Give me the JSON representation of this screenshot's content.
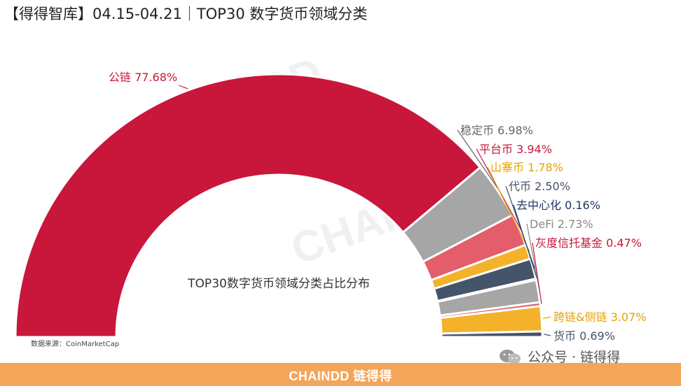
{
  "header": {
    "title": "【得得智库】04.15-04.21｜TOP30 数字货币领域分类"
  },
  "source": "数据来源：CoinMarketCap",
  "footer": {
    "brand": "CHAINDD 链得得"
  },
  "wechat": {
    "label": "公众号 · 链得得"
  },
  "watermarks": [
    "CHAINDD",
    "链得得"
  ],
  "chart_data": {
    "type": "pie",
    "subtype": "half-doughnut",
    "title": "TOP30数字货币领域分类占比分布",
    "categories": [
      "公链",
      "稳定币",
      "平台币",
      "山寨币",
      "代币",
      "去中心化",
      "DeFi",
      "灰度信托基金",
      "跨链&侧链",
      "货币"
    ],
    "values": [
      77.68,
      6.98,
      3.94,
      1.78,
      2.5,
      0.16,
      2.73,
      0.47,
      3.07,
      0.69
    ],
    "labels": [
      "公链 77.68%",
      "稳定币 6.98%",
      "平台币 3.94%",
      "山寨币 1.78%",
      "代币 2.50%",
      "去中心化 0.16%",
      "DeFi 2.73%",
      "灰度信托基金 0.47%",
      "跨链&侧链 3.07%",
      "货币 0.69%"
    ],
    "colors": [
      "#c8173a",
      "#a6a6a6",
      "#e35d6a",
      "#f3b229",
      "#44546a",
      "#1f3864",
      "#a6a6a6",
      "#e35d6a",
      "#f3b229",
      "#44546a"
    ],
    "label_colors": [
      "#c8173a",
      "#666666",
      "#c8173a",
      "#e8a000",
      "#44546a",
      "#1f3864",
      "#888888",
      "#c8173a",
      "#e8a000",
      "#44546a"
    ]
  }
}
